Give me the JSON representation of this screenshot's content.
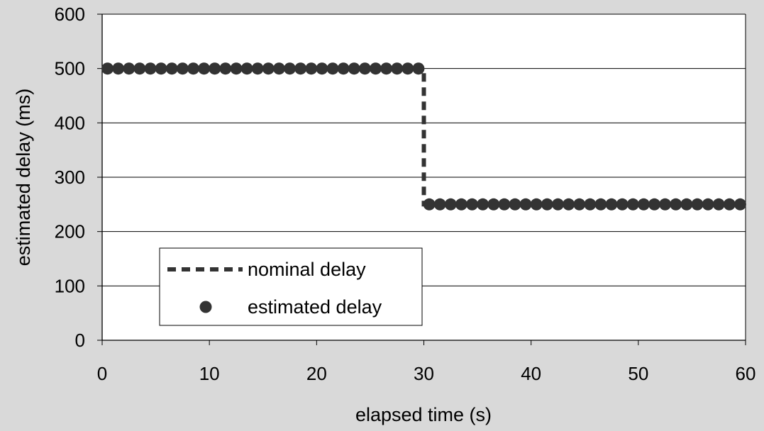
{
  "chart_data": {
    "type": "scatter",
    "title": "",
    "xlabel": "elapsed time (s)",
    "ylabel": "estimated delay (ms)",
    "xlim": [
      0,
      60
    ],
    "ylim": [
      0,
      600
    ],
    "x_ticks": [
      "0",
      "10",
      "20",
      "30",
      "40",
      "50",
      "60"
    ],
    "y_ticks": [
      "0",
      "100",
      "200",
      "300",
      "400",
      "500",
      "600"
    ],
    "grid": "horizontal",
    "legend_position": "lower-left",
    "colors": {
      "series": "#333333",
      "background": "#d9d9d9",
      "plot_area": "#ffffff"
    },
    "series": [
      {
        "name": "nominal delay",
        "style": "dashed-line",
        "x": [
          0,
          30,
          30,
          60
        ],
        "y": [
          500,
          500,
          250,
          250
        ]
      },
      {
        "name": "estimated delay",
        "style": "markers",
        "x": [
          0.5,
          1.5,
          2.5,
          3.5,
          4.5,
          5.5,
          6.5,
          7.5,
          8.5,
          9.5,
          10.5,
          11.5,
          12.5,
          13.5,
          14.5,
          15.5,
          16.5,
          17.5,
          18.5,
          19.5,
          20.5,
          21.5,
          22.5,
          23.5,
          24.5,
          25.5,
          26.5,
          27.5,
          28.5,
          29.5,
          30.5,
          31.5,
          32.5,
          33.5,
          34.5,
          35.5,
          36.5,
          37.5,
          38.5,
          39.5,
          40.5,
          41.5,
          42.5,
          43.5,
          44.5,
          45.5,
          46.5,
          47.5,
          48.5,
          49.5,
          50.5,
          51.5,
          52.5,
          53.5,
          54.5,
          55.5,
          56.5,
          57.5,
          58.5,
          59.5
        ],
        "y": [
          500,
          500,
          500,
          500,
          500,
          500,
          500,
          500,
          500,
          500,
          500,
          500,
          500,
          500,
          500,
          500,
          500,
          500,
          500,
          500,
          500,
          500,
          500,
          500,
          500,
          500,
          500,
          500,
          500,
          500,
          250,
          250,
          250,
          250,
          250,
          250,
          250,
          250,
          250,
          250,
          250,
          250,
          250,
          250,
          250,
          250,
          250,
          250,
          250,
          250,
          250,
          250,
          250,
          250,
          250,
          250,
          250,
          250,
          250,
          250
        ]
      }
    ]
  }
}
